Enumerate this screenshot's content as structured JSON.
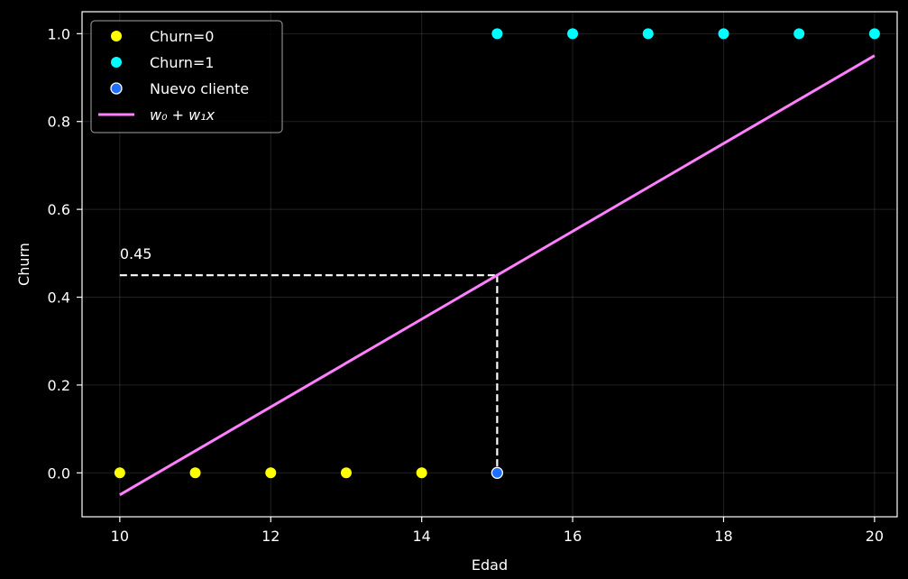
{
  "chart_data": {
    "type": "scatter",
    "xlabel": "Edad",
    "ylabel": "Churn",
    "xlim": [
      9.5,
      20.3
    ],
    "ylim": [
      -0.1,
      1.05
    ],
    "xticks": [
      "10",
      "12",
      "14",
      "16",
      "18",
      "20"
    ],
    "yticks": [
      "0.0",
      "0.2",
      "0.4",
      "0.6",
      "0.8",
      "1.0"
    ],
    "xtick_values": [
      10,
      12,
      14,
      16,
      18,
      20
    ],
    "ytick_values": [
      0.0,
      0.2,
      0.4,
      0.6,
      0.8,
      1.0
    ],
    "grid": true,
    "legend_position": "top-left",
    "series": [
      {
        "name": "Churn=0",
        "kind": "scatter",
        "color": "#ffff00",
        "x": [
          10,
          11,
          12,
          13,
          14
        ],
        "y": [
          0,
          0,
          0,
          0,
          0
        ]
      },
      {
        "name": "Churn=1",
        "kind": "scatter",
        "color": "#00ffff",
        "x": [
          15,
          16,
          17,
          18,
          19,
          20
        ],
        "y": [
          1,
          1,
          1,
          1,
          1,
          1
        ]
      },
      {
        "name": "Nuevo cliente",
        "kind": "scatter",
        "color": "#1f6fff",
        "edge_color": "#ffffff",
        "x": [
          15
        ],
        "y": [
          0
        ]
      },
      {
        "name": "w₀ + w₁x",
        "kind": "line",
        "color": "#ff80ff",
        "x": [
          10,
          20
        ],
        "y": [
          -0.05,
          0.95
        ]
      }
    ],
    "annotations": [
      {
        "text": "0.45",
        "x": 10,
        "y": 0.5,
        "guide": {
          "x0": 10,
          "x1": 15,
          "y": 0.45,
          "y0": 0
        }
      }
    ]
  }
}
